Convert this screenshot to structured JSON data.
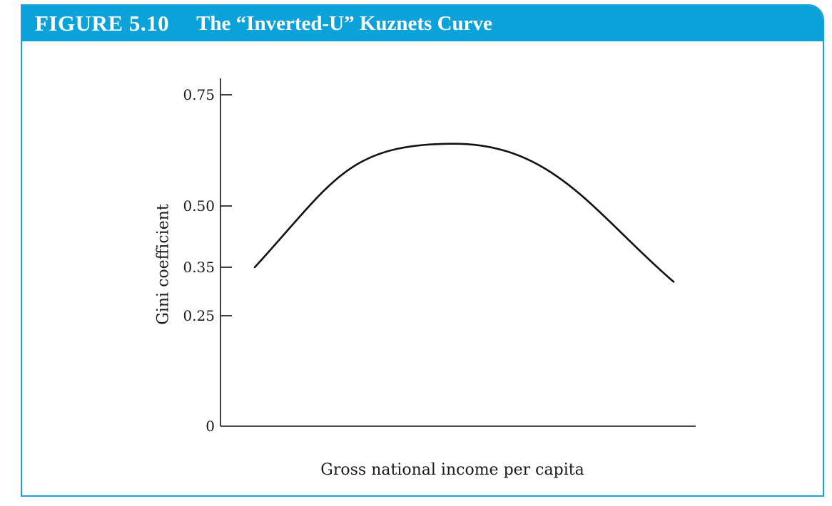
{
  "figure": {
    "number": "FIGURE 5.10",
    "title": "The “Inverted-U” Kuznets Curve",
    "accent_color": "#0aa2d8",
    "border_color": "#1a9fd6"
  },
  "chart_data": {
    "type": "line",
    "title": "",
    "xlabel": "Gross national income per capita",
    "ylabel": "Gini coefficient",
    "y_ticks": [
      {
        "value": 0.75,
        "label": "0.75"
      },
      {
        "value": 0.5,
        "label": "0.50"
      },
      {
        "value": 0.35,
        "label": "0.35"
      },
      {
        "value": 0.25,
        "label": "0.25"
      },
      {
        "value": 0,
        "label": "0"
      }
    ],
    "series": [
      {
        "color": "#111111",
        "shape": "inverted-U",
        "y_start": 0.35,
        "y_peak": 0.64,
        "y_end": 0.32
      }
    ],
    "grid": false,
    "legend": "none"
  }
}
